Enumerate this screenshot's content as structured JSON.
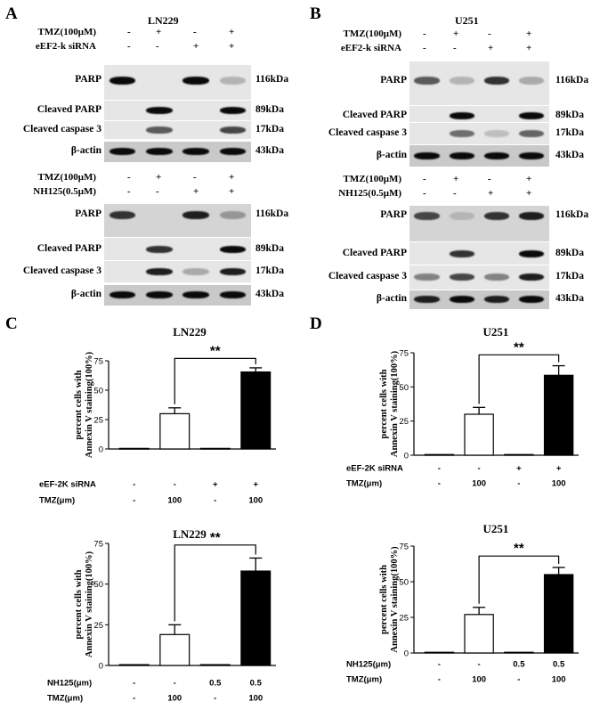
{
  "panels": {
    "A": {
      "letter": "A",
      "cell_line": "LN229",
      "blot1": {
        "treatments": [
          {
            "label": "TMZ(100μM)",
            "signs": [
              "-",
              "+",
              "-",
              "+"
            ]
          },
          {
            "label": "eEF2-k siRNA",
            "signs": [
              "-",
              "-",
              "+",
              "+"
            ]
          }
        ],
        "bands": [
          {
            "label": "PARP",
            "kda": "116kDa"
          },
          {
            "label": "Cleaved PARP",
            "kda": "89kDa"
          },
          {
            "label": "Cleaved caspase 3",
            "kda": "17kDa"
          },
          {
            "label": "β-actin",
            "kda": "43kDa"
          }
        ]
      },
      "blot2": {
        "treatments": [
          {
            "label": "TMZ(100μM)",
            "signs": [
              "-",
              "+",
              "-",
              "+"
            ]
          },
          {
            "label": "NH125(0.5μM)",
            "signs": [
              "-",
              "-",
              "+",
              "+"
            ]
          }
        ],
        "bands": [
          {
            "label": "PARP",
            "kda": "116kDa"
          },
          {
            "label": "Cleaved PARP",
            "kda": "89kDa"
          },
          {
            "label": "Cleaved caspase 3",
            "kda": "17kDa"
          },
          {
            "label": "β-actin",
            "kda": "43kDa"
          }
        ]
      }
    },
    "B": {
      "letter": "B",
      "cell_line": "U251",
      "blot1": {
        "treatments": [
          {
            "label": "TMZ(100μM)",
            "signs": [
              "-",
              "+",
              "-",
              "+"
            ]
          },
          {
            "label": "eEF2-k siRNA",
            "signs": [
              "-",
              "-",
              "+",
              "+"
            ]
          }
        ],
        "bands": [
          {
            "label": "PARP",
            "kda": "116kDa"
          },
          {
            "label": "Cleaved PARP",
            "kda": "89kDa"
          },
          {
            "label": "Cleaved caspase 3",
            "kda": "17kDa"
          },
          {
            "label": "β-actin",
            "kda": "43kDa"
          }
        ]
      },
      "blot2": {
        "treatments": [
          {
            "label": "TMZ(100μM)",
            "signs": [
              "-",
              "+",
              "-",
              "+"
            ]
          },
          {
            "label": "NH125(0.5μM)",
            "signs": [
              "-",
              "-",
              "+",
              "+"
            ]
          }
        ],
        "bands": [
          {
            "label": "PARP",
            "kda": "116kDa"
          },
          {
            "label": "Cleaved PARP",
            "kda": "89kDa"
          },
          {
            "label": "Cleaved caspase 3",
            "kda": "17kDa"
          },
          {
            "label": "β-actin",
            "kda": "43kDa"
          }
        ]
      }
    },
    "C": {
      "letter": "C"
    },
    "D": {
      "letter": "D"
    }
  },
  "chart_data": [
    {
      "type": "bar",
      "panel": "C",
      "title": "LN229",
      "ylabel": "percent cells with Annexin V staining(100%)",
      "ylim": [
        0,
        75
      ],
      "yticks": [
        "0",
        "25",
        "50",
        "75"
      ],
      "values": [
        0.5,
        30,
        0.5,
        65.5
      ],
      "errors": [
        0.3,
        5,
        0.3,
        3.5
      ],
      "bar_colors": [
        "#ffffff",
        "#ffffff",
        "#ffffff",
        "#000000"
      ],
      "row_labels": [
        {
          "label": "eEF-2K siRNA",
          "values": [
            "-",
            "-",
            "+",
            "+"
          ]
        },
        {
          "label": "TMZ(μm)",
          "values": [
            "-",
            "100",
            "-",
            "100"
          ]
        }
      ],
      "significance": {
        "from": 1,
        "to": 3,
        "label": "**"
      }
    },
    {
      "type": "bar",
      "panel": "D",
      "title": "U251",
      "ylabel": "percent cells with Annexin V staining(100%)",
      "ylim": [
        0,
        75
      ],
      "yticks": [
        "0",
        "25",
        "50",
        "75"
      ],
      "values": [
        0.5,
        30,
        0.5,
        58.5
      ],
      "errors": [
        0.3,
        5,
        0.3,
        7
      ],
      "bar_colors": [
        "#ffffff",
        "#ffffff",
        "#ffffff",
        "#000000"
      ],
      "row_labels": [
        {
          "label": "eEF-2K siRNA",
          "values": [
            "-",
            "-",
            "+",
            "+"
          ]
        },
        {
          "label": "TMZ(μm)",
          "values": [
            "-",
            "100",
            "-",
            "100"
          ]
        }
      ],
      "significance": {
        "from": 1,
        "to": 3,
        "label": "**"
      }
    },
    {
      "type": "bar",
      "panel": "C",
      "title": "LN229",
      "ylabel": "percent cells with Annexin V staining(100%)",
      "ylim": [
        0,
        75
      ],
      "yticks": [
        "0",
        "25",
        "50",
        "75"
      ],
      "values": [
        0.5,
        19,
        0.5,
        58
      ],
      "errors": [
        0.3,
        6,
        0.3,
        8
      ],
      "bar_colors": [
        "#ffffff",
        "#ffffff",
        "#ffffff",
        "#000000"
      ],
      "row_labels": [
        {
          "label": "NH125(μm)",
          "values": [
            "-",
            "-",
            "0.5",
            "0.5"
          ]
        },
        {
          "label": "TMZ(μm)",
          "values": [
            "-",
            "100",
            "-",
            "100"
          ]
        }
      ],
      "significance": {
        "from": 1,
        "to": 3,
        "label": "**"
      }
    },
    {
      "type": "bar",
      "panel": "D",
      "title": "U251",
      "ylabel": "percent cells with Annexin V staining(100%)",
      "ylim": [
        0,
        75
      ],
      "yticks": [
        "0",
        "25",
        "50",
        "75"
      ],
      "values": [
        0.5,
        27,
        0.5,
        55
      ],
      "errors": [
        0.3,
        5,
        0.3,
        5
      ],
      "bar_colors": [
        "#ffffff",
        "#ffffff",
        "#ffffff",
        "#000000"
      ],
      "row_labels": [
        {
          "label": "NH125(μm)",
          "values": [
            "-",
            "-",
            "0.5",
            "0.5"
          ]
        },
        {
          "label": "TMZ(μm)",
          "values": [
            "-",
            "100",
            "-",
            "100"
          ]
        }
      ],
      "significance": {
        "from": 1,
        "to": 3,
        "label": "**"
      }
    }
  ]
}
